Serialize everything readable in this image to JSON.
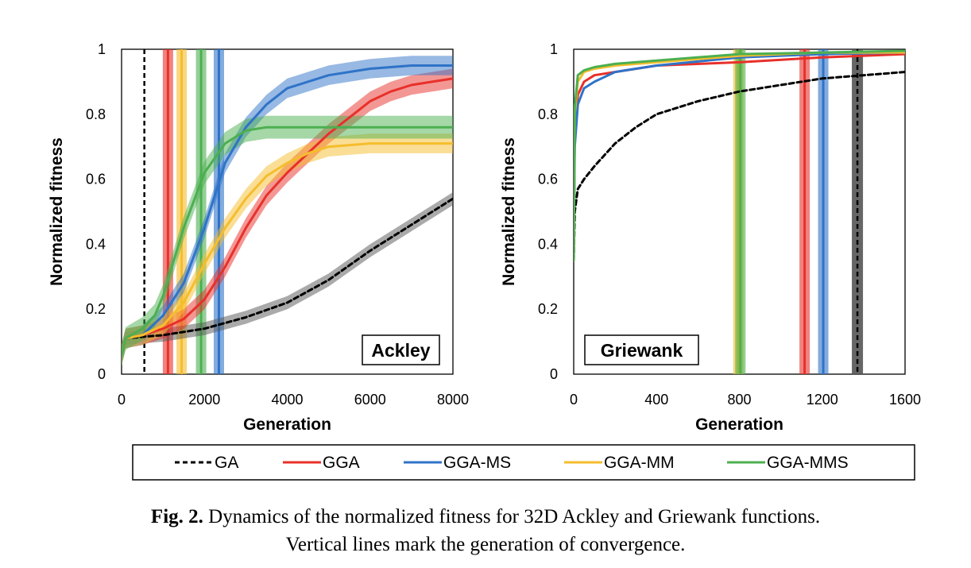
{
  "caption": {
    "label": "Fig. 2.",
    "line1": "Dynamics of the normalized fitness for 32D Ackley and Griewank functions.",
    "line2": "Vertical lines mark the generation of convergence."
  },
  "legend": [
    {
      "name": "GA",
      "color": "#000000",
      "dashed": true
    },
    {
      "name": "GGA",
      "color": "#e8302a",
      "dashed": false
    },
    {
      "name": "GGA-MS",
      "color": "#2f73c8",
      "dashed": false
    },
    {
      "name": "GGA-MM",
      "color": "#f5bd2c",
      "dashed": false
    },
    {
      "name": "GGA-MMS",
      "color": "#4caf50",
      "dashed": false
    }
  ],
  "chart_data": [
    {
      "type": "line",
      "panel_label": "Ackley",
      "xlabel": "Generation",
      "ylabel": "Normalized fitness",
      "xlim": [
        0,
        8000
      ],
      "ylim": [
        0,
        1
      ],
      "xticks": [
        "0",
        "2000",
        "4000",
        "6000",
        "8000"
      ],
      "yticks": [
        "0",
        "0.2",
        "0.4",
        "0.6",
        "0.8",
        "1"
      ],
      "series": [
        {
          "name": "GA",
          "band": 0.02,
          "convergence": 550,
          "x": [
            0,
            100,
            500,
            1000,
            2000,
            3000,
            4000,
            5000,
            6000,
            7000,
            8000
          ],
          "y": [
            0.06,
            0.11,
            0.115,
            0.12,
            0.14,
            0.175,
            0.22,
            0.29,
            0.38,
            0.46,
            0.54
          ]
        },
        {
          "name": "GGA",
          "band": 0.03,
          "convergence": 1120,
          "x": [
            0,
            100,
            500,
            1000,
            1500,
            2000,
            2500,
            3000,
            3500,
            4000,
            4500,
            5000,
            5500,
            6000,
            6500,
            7000,
            7500,
            8000
          ],
          "y": [
            0.06,
            0.11,
            0.12,
            0.14,
            0.17,
            0.23,
            0.33,
            0.45,
            0.55,
            0.62,
            0.68,
            0.74,
            0.79,
            0.84,
            0.87,
            0.89,
            0.9,
            0.91
          ]
        },
        {
          "name": "GGA-MS",
          "band": 0.03,
          "convergence": 2350,
          "x": [
            0,
            100,
            500,
            1000,
            1500,
            2000,
            2500,
            3000,
            3500,
            4000,
            5000,
            6000,
            7000,
            8000
          ],
          "y": [
            0.06,
            0.11,
            0.12,
            0.18,
            0.28,
            0.45,
            0.65,
            0.76,
            0.83,
            0.88,
            0.92,
            0.94,
            0.95,
            0.95
          ]
        },
        {
          "name": "GGA-MM",
          "band": 0.03,
          "convergence": 1450,
          "x": [
            0,
            100,
            500,
            1000,
            1500,
            2000,
            2500,
            3000,
            3500,
            4000,
            4500,
            5000,
            6000,
            7000,
            8000
          ],
          "y": [
            0.06,
            0.11,
            0.12,
            0.15,
            0.22,
            0.34,
            0.45,
            0.54,
            0.61,
            0.65,
            0.68,
            0.7,
            0.71,
            0.71,
            0.71
          ]
        },
        {
          "name": "GGA-MMS",
          "band": 0.035,
          "convergence": 1920,
          "x": [
            0,
            100,
            500,
            800,
            1000,
            1500,
            2000,
            2500,
            3000,
            3500,
            4000,
            5000,
            6000,
            8000
          ],
          "y": [
            0.06,
            0.11,
            0.14,
            0.18,
            0.24,
            0.45,
            0.62,
            0.71,
            0.75,
            0.76,
            0.76,
            0.76,
            0.76,
            0.76
          ]
        }
      ]
    },
    {
      "type": "line",
      "panel_label": "Griewank",
      "xlabel": "Generation",
      "ylabel": "Normalized fitness",
      "xlim": [
        0,
        1600
      ],
      "ylim": [
        0,
        1
      ],
      "xticks": [
        "0",
        "400",
        "800",
        "1200",
        "1600"
      ],
      "yticks": [
        "0",
        "0.2",
        "0.4",
        "0.6",
        "0.8",
        "1"
      ],
      "series": [
        {
          "name": "GA",
          "band": 0.0,
          "convergence": 1370,
          "x": [
            0,
            5,
            20,
            50,
            100,
            200,
            300,
            400,
            600,
            800,
            1000,
            1200,
            1400,
            1600
          ],
          "y": [
            0.35,
            0.5,
            0.57,
            0.6,
            0.64,
            0.71,
            0.76,
            0.8,
            0.84,
            0.87,
            0.89,
            0.91,
            0.92,
            0.93
          ]
        },
        {
          "name": "GGA",
          "band": 0.0,
          "convergence": 1115,
          "x": [
            0,
            5,
            20,
            50,
            100,
            200,
            400,
            800,
            1200,
            1600
          ],
          "y": [
            0.35,
            0.75,
            0.86,
            0.9,
            0.92,
            0.93,
            0.95,
            0.96,
            0.975,
            0.985
          ]
        },
        {
          "name": "GGA-MS",
          "band": 0.0,
          "convergence": 1205,
          "x": [
            0,
            5,
            20,
            50,
            100,
            200,
            400,
            800,
            1200,
            1600
          ],
          "y": [
            0.35,
            0.7,
            0.83,
            0.88,
            0.9,
            0.93,
            0.95,
            0.975,
            0.985,
            0.99
          ]
        },
        {
          "name": "GGA-MM",
          "band": 0.0,
          "convergence": 795,
          "x": [
            0,
            5,
            20,
            50,
            100,
            200,
            400,
            800,
            1200,
            1600
          ],
          "y": [
            0.35,
            0.8,
            0.9,
            0.93,
            0.94,
            0.95,
            0.96,
            0.98,
            0.99,
            0.99
          ]
        },
        {
          "name": "GGA-MMS",
          "band": 0.0,
          "convergence": 805,
          "x": [
            0,
            5,
            20,
            50,
            100,
            200,
            400,
            800,
            1200,
            1600
          ],
          "y": [
            0.35,
            0.82,
            0.92,
            0.935,
            0.945,
            0.955,
            0.965,
            0.985,
            0.99,
            0.995
          ]
        }
      ]
    }
  ]
}
